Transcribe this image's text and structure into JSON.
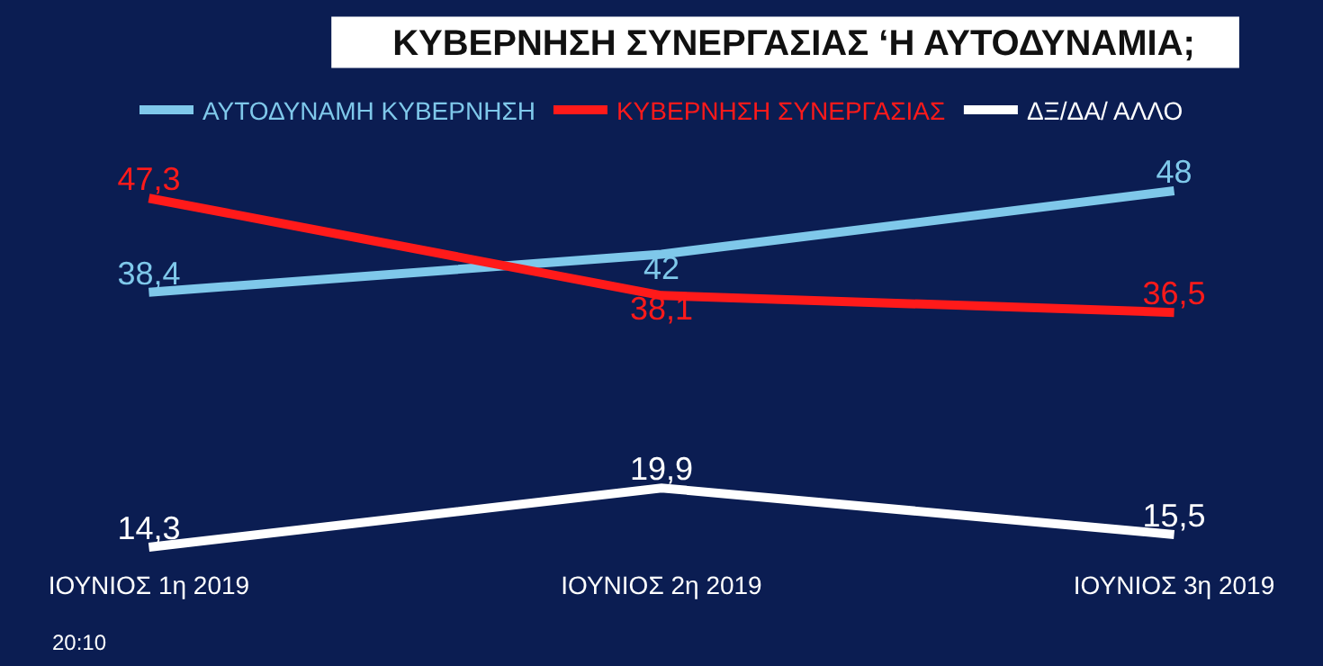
{
  "chart_data": {
    "type": "line",
    "title": "ΚΥΒΕΡΝΗΣΗ ΣΥΝΕΡΓΑΣΙΑΣ ‘Η ΑΥΤΟΔΥΝΑΜΙΑ;",
    "categories": [
      "ΙΟΥΝΙΟΣ 1η 2019",
      "ΙΟΥΝΙΟΣ 2η 2019",
      "ΙΟΥΝΙΟΣ 3η 2019"
    ],
    "series": [
      {
        "name": "ΑΥΤΟΔΥΝΑΜΗ ΚΥΒΕΡΝΗΣΗ",
        "color": "#7fc8ea",
        "values": [
          38.4,
          42,
          48
        ],
        "value_labels": [
          "38,4",
          "42",
          "48"
        ]
      },
      {
        "name": "ΚΥΒΕΡΝΗΣΗ ΣΥΝΕΡΓΑΣΙΑΣ",
        "color": "#ff1a1a",
        "values": [
          47.3,
          38.1,
          36.5
        ],
        "value_labels": [
          "47,3",
          "38,1",
          "36,5"
        ]
      },
      {
        "name": "ΔΞ/ΔΑ/ ΑΛΛΟ",
        "color": "#ffffff",
        "values": [
          14.3,
          19.9,
          15.5
        ],
        "value_labels": [
          "14,3",
          "19,9",
          "15,5"
        ]
      }
    ],
    "legend": "top",
    "marker": "none",
    "line_style": "solid",
    "annotations": [
      "20:10"
    ]
  }
}
